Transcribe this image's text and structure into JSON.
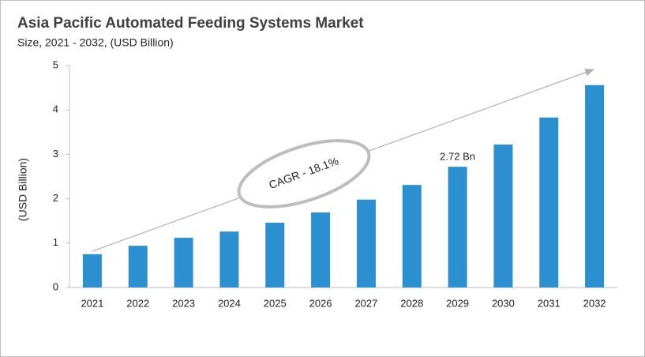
{
  "chart_data": {
    "type": "bar",
    "title": "Asia Pacific Automated Feeding Systems Market",
    "subtitle": "Size, 2021 - 2032, (USD Billion)",
    "y_label": "(USD Billion)",
    "annotation": "CAGR - 18.1%",
    "categories": [
      "2021",
      "2022",
      "2023",
      "2024",
      "2025",
      "2026",
      "2027",
      "2028",
      "2029",
      "2030",
      "2031",
      "2032"
    ],
    "values": [
      0.75,
      0.94,
      1.12,
      1.26,
      1.46,
      1.69,
      1.98,
      2.31,
      2.72,
      3.22,
      3.83,
      4.56
    ],
    "value_labels": [
      null,
      null,
      null,
      null,
      null,
      null,
      null,
      null,
      "2.72 Bn",
      null,
      null,
      null
    ],
    "color": "#2b8fd0",
    "ylim": [
      0,
      5
    ],
    "yticks": [
      0,
      1,
      2,
      3,
      4,
      5
    ],
    "grid": false
  }
}
